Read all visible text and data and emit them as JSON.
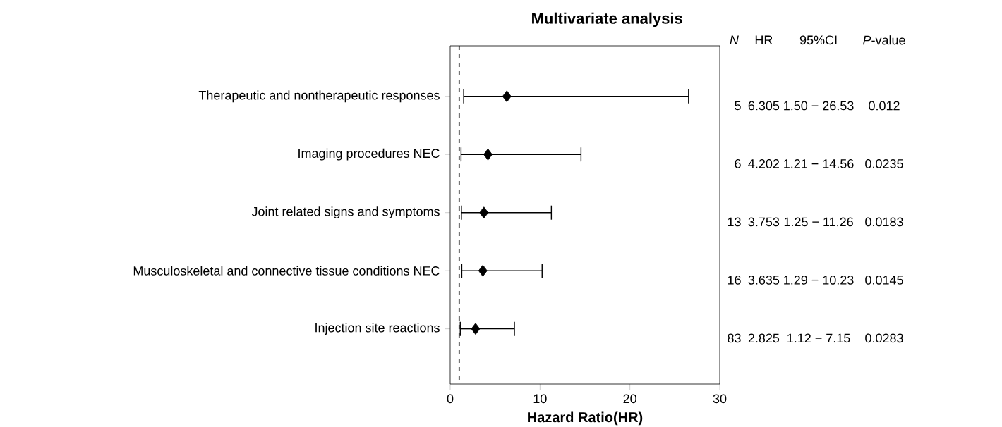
{
  "chart_data": {
    "type": "scatter",
    "orientation": "horizontal",
    "title": "Multivariate analysis",
    "xlabel": "Hazard Ratio(HR)",
    "categories": [
      "Therapeutic and nontherapeutic responses",
      "Imaging procedures NEC",
      "Joint related signs and symptoms",
      "Musculoskeletal and connective tissue conditions NEC",
      "Injection site reactions"
    ],
    "values": [
      6.305,
      4.202,
      3.753,
      3.635,
      2.825
    ],
    "errors": [
      [
        1.5,
        26.53
      ],
      [
        1.21,
        14.56
      ],
      [
        1.25,
        11.26
      ],
      [
        1.29,
        10.23
      ],
      [
        1.12,
        7.15
      ]
    ],
    "color": "#000000",
    "marker": "diamond",
    "xlim": [
      0,
      30
    ],
    "xticks": [
      0,
      10,
      20,
      30
    ],
    "ref_lines": [
      {
        "axis": "x",
        "value": 1,
        "line_style": "dashed"
      }
    ],
    "annotations": [
      "*N*",
      "HR",
      "95%CI",
      "*P*-value",
      "5",
      "6.305",
      "1.50 − 26.53",
      "0.012",
      "6",
      "4.202",
      "1.21 − 14.56",
      "0.0235",
      "13",
      "3.753",
      "1.25 − 11.26",
      "0.0183",
      "16",
      "3.635",
      "1.29 − 10.23",
      "0.0145",
      "83",
      "2.825",
      "1.12 − 7.15",
      "0.0283"
    ]
  }
}
